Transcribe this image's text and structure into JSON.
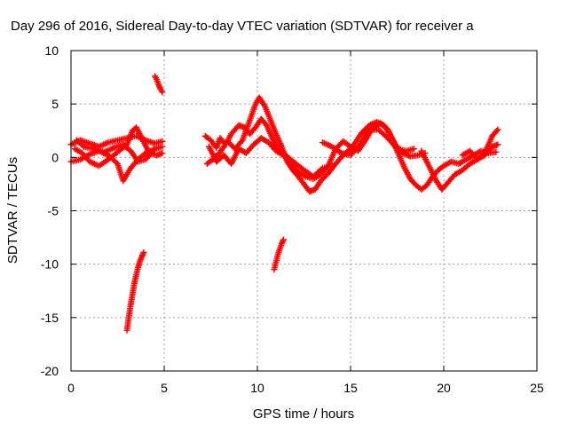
{
  "chart_data": {
    "type": "scatter",
    "title": "Day 296 of 2016, Sidereal Day-to-day VTEC variation (SDTVAR) for receiver a",
    "xlabel": "GPS time / hours",
    "ylabel": "SDTVAR / TECUs",
    "xlim": [
      0,
      25
    ],
    "ylim": [
      -20,
      10
    ],
    "xticks": [
      0,
      5,
      10,
      15,
      20,
      25
    ],
    "yticks": [
      -20,
      -15,
      -10,
      -5,
      0,
      5,
      10
    ],
    "grid": true,
    "marker": "+",
    "color": "#ff0000",
    "series": [
      {
        "segments": [
          [
            [
              0.0,
              1.2
            ],
            [
              0.5,
              1.6
            ],
            [
              1.0,
              1.3
            ],
            [
              1.5,
              1.0
            ],
            [
              2.0,
              1.4
            ],
            [
              2.5,
              1.6
            ],
            [
              3.0,
              1.8
            ],
            [
              3.5,
              2.0
            ],
            [
              4.0,
              1.6
            ],
            [
              4.5,
              1.3
            ],
            [
              4.9,
              1.5
            ]
          ],
          [
            [
              0.0,
              -0.4
            ],
            [
              0.5,
              -0.2
            ],
            [
              1.0,
              0.3
            ],
            [
              1.5,
              0.6
            ],
            [
              2.0,
              0.2
            ],
            [
              2.5,
              -0.6
            ],
            [
              2.8,
              -2.2
            ],
            [
              3.2,
              -1.0
            ],
            [
              3.6,
              -0.2
            ],
            [
              4.0,
              0.4
            ],
            [
              4.5,
              0.8
            ],
            [
              4.9,
              1.0
            ]
          ],
          [
            [
              0.2,
              0.8
            ],
            [
              0.6,
              0.4
            ],
            [
              1.0,
              -0.4
            ],
            [
              1.5,
              -0.8
            ],
            [
              2.0,
              -0.2
            ],
            [
              2.5,
              0.5
            ],
            [
              3.0,
              1.2
            ],
            [
              3.3,
              2.5
            ],
            [
              3.5,
              2.8
            ],
            [
              3.8,
              1.8
            ],
            [
              4.2,
              0.4
            ],
            [
              4.6,
              0.2
            ],
            [
              4.9,
              0.4
            ]
          ],
          [
            [
              0.3,
              1.6
            ],
            [
              0.7,
              1.0
            ],
            [
              1.2,
              0.8
            ],
            [
              1.8,
              0.5
            ],
            [
              2.3,
              0.9
            ],
            [
              2.8,
              1.2
            ],
            [
              3.2,
              0.6
            ],
            [
              3.6,
              -0.4
            ],
            [
              4.0,
              -0.2
            ],
            [
              4.4,
              0.6
            ]
          ],
          [
            [
              3.0,
              -16.2
            ],
            [
              3.1,
              -15.0
            ],
            [
              3.2,
              -13.8
            ],
            [
              3.3,
              -12.8
            ],
            [
              3.4,
              -11.8
            ],
            [
              3.5,
              -11.0
            ],
            [
              3.6,
              -10.3
            ],
            [
              3.7,
              -9.7
            ],
            [
              3.8,
              -9.3
            ],
            [
              3.9,
              -8.9
            ]
          ],
          [
            [
              4.5,
              7.6
            ],
            [
              4.6,
              7.3
            ],
            [
              4.7,
              6.8
            ],
            [
              4.8,
              6.4
            ],
            [
              4.9,
              6.1
            ]
          ],
          [
            [
              7.2,
              2.0
            ],
            [
              7.5,
              1.6
            ],
            [
              7.8,
              0.9
            ],
            [
              8.0,
              1.8
            ],
            [
              8.3,
              1.2
            ],
            [
              8.6,
              2.2
            ],
            [
              9.0,
              3.0
            ],
            [
              9.3,
              2.8
            ],
            [
              9.6,
              2.2
            ],
            [
              9.9,
              2.8
            ],
            [
              10.2,
              3.6
            ],
            [
              10.5,
              3.0
            ],
            [
              10.8,
              1.8
            ],
            [
              11.1,
              0.8
            ],
            [
              11.5,
              0.2
            ],
            [
              12.0,
              -0.5
            ],
            [
              12.5,
              -1.2
            ],
            [
              13.0,
              -1.8
            ],
            [
              13.5,
              -1.0
            ],
            [
              14.0,
              -0.8
            ]
          ],
          [
            [
              7.3,
              -0.6
            ],
            [
              7.6,
              -0.2
            ],
            [
              8.0,
              0.5
            ],
            [
              8.4,
              1.5
            ],
            [
              8.8,
              0.8
            ],
            [
              9.2,
              1.6
            ],
            [
              9.6,
              3.5
            ],
            [
              9.9,
              5.0
            ],
            [
              10.1,
              5.6
            ],
            [
              10.4,
              4.8
            ],
            [
              10.7,
              3.5
            ],
            [
              11.0,
              2.2
            ],
            [
              11.3,
              1.0
            ],
            [
              11.6,
              -0.4
            ],
            [
              11.9,
              -1.2
            ],
            [
              12.2,
              -1.8
            ],
            [
              12.5,
              -2.5
            ],
            [
              12.8,
              -3.2
            ],
            [
              13.1,
              -3.0
            ],
            [
              13.4,
              -2.2
            ],
            [
              13.8,
              -1.5
            ],
            [
              14.2,
              -0.6
            ],
            [
              14.6,
              0.2
            ],
            [
              15.0,
              0.8
            ],
            [
              15.3,
              1.5
            ],
            [
              15.6,
              2.3
            ],
            [
              16.0,
              3.0
            ],
            [
              16.4,
              3.3
            ],
            [
              16.8,
              3.0
            ],
            [
              17.1,
              2.2
            ],
            [
              17.4,
              1.2
            ],
            [
              17.8,
              0.4
            ],
            [
              18.2,
              0.1
            ],
            [
              18.6,
              0.2
            ],
            [
              19.0,
              0.4
            ]
          ],
          [
            [
              7.4,
              1.0
            ],
            [
              7.8,
              -0.4
            ],
            [
              8.2,
              0.2
            ],
            [
              8.6,
              -0.6
            ],
            [
              9.0,
              0.8
            ],
            [
              9.4,
              0.4
            ],
            [
              9.8,
              1.2
            ],
            [
              10.2,
              1.8
            ],
            [
              10.6,
              1.4
            ],
            [
              11.0,
              0.6
            ],
            [
              11.4,
              0.2
            ],
            [
              11.8,
              -0.6
            ],
            [
              12.2,
              -1.4
            ],
            [
              12.6,
              -1.8
            ],
            [
              13.0,
              -2.0
            ],
            [
              13.4,
              -1.6
            ],
            [
              13.8,
              -0.8
            ],
            [
              14.2,
              0.8
            ],
            [
              14.6,
              1.5
            ],
            [
              15.0,
              1.0
            ],
            [
              15.4,
              0.6
            ],
            [
              15.8,
              1.6
            ],
            [
              16.2,
              2.8
            ],
            [
              16.6,
              3.2
            ],
            [
              17.0,
              2.6
            ],
            [
              17.3,
              1.4
            ],
            [
              17.6,
              0.2
            ],
            [
              17.9,
              -1.0
            ],
            [
              18.2,
              -2.0
            ],
            [
              18.5,
              -2.6
            ],
            [
              18.8,
              -3.0
            ],
            [
              19.1,
              -2.6
            ],
            [
              19.4,
              -1.8
            ],
            [
              19.7,
              -1.2
            ],
            [
              20.0,
              -0.8
            ],
            [
              20.4,
              -0.4
            ],
            [
              20.8,
              -0.6
            ],
            [
              21.2,
              -0.2
            ],
            [
              21.6,
              0.2
            ],
            [
              22.0,
              0.6
            ],
            [
              22.4,
              0.4
            ],
            [
              22.8,
              0.5
            ]
          ],
          [
            [
              13.5,
              1.4
            ],
            [
              14.0,
              1.0
            ],
            [
              14.5,
              0.4
            ],
            [
              15.0,
              0.2
            ],
            [
              15.5,
              1.2
            ],
            [
              16.0,
              2.6
            ],
            [
              16.5,
              2.6
            ],
            [
              17.0,
              1.8
            ],
            [
              17.5,
              0.8
            ],
            [
              18.0,
              0.6
            ],
            [
              18.4,
              0.8
            ]
          ],
          [
            [
              18.8,
              0.6
            ],
            [
              19.2,
              -0.8
            ],
            [
              19.6,
              -2.2
            ],
            [
              19.9,
              -3.0
            ],
            [
              20.2,
              -2.4
            ],
            [
              20.6,
              -1.6
            ],
            [
              21.0,
              -1.2
            ],
            [
              21.4,
              -0.6
            ],
            [
              21.8,
              -0.2
            ],
            [
              22.2,
              0.2
            ],
            [
              22.6,
              1.0
            ],
            [
              22.9,
              1.2
            ]
          ],
          [
            [
              21.0,
              0.2
            ],
            [
              21.4,
              0.6
            ],
            [
              21.8,
              -0.2
            ],
            [
              22.2,
              0.4
            ],
            [
              22.6,
              2.0
            ],
            [
              22.9,
              2.6
            ]
          ],
          [
            [
              10.9,
              -10.5
            ],
            [
              11.0,
              -9.8
            ],
            [
              11.1,
              -9.1
            ],
            [
              11.2,
              -8.6
            ],
            [
              11.3,
              -8.1
            ],
            [
              11.4,
              -7.7
            ]
          ]
        ]
      }
    ]
  }
}
